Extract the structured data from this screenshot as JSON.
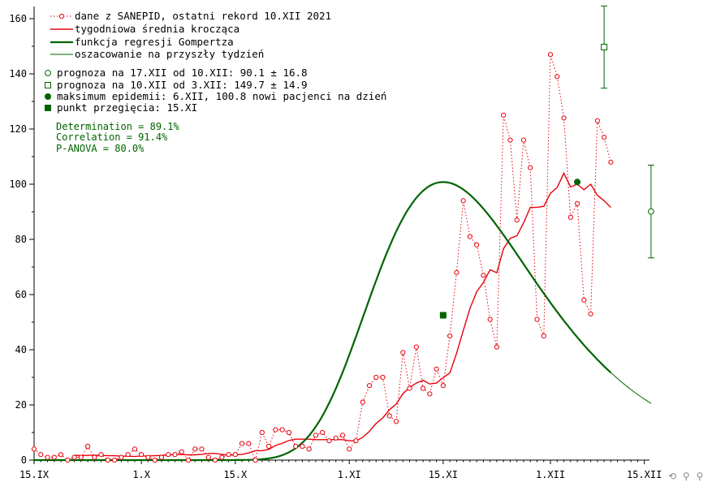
{
  "chart_data": {
    "type": "line",
    "title": "",
    "xlabel": "",
    "ylabel": "",
    "x_ticks": [
      "15.IX",
      "1.X",
      "15.X",
      "1.XI",
      "15.XI",
      "1.XII",
      "15.XII"
    ],
    "y_ticks": [
      "0",
      "20",
      "40",
      "60",
      "80",
      "100",
      "120",
      "140",
      "160"
    ],
    "ylim": [
      0,
      160
    ],
    "xlim_days_from_first_tick": [
      0,
      91
    ],
    "grid": false,
    "legend_position": "top-left",
    "legend": {
      "series1": "dane z SANEPID, ostatni rekord 10.XII 2021",
      "series2": "tygodniowa średnia krocząca",
      "series3": "funkcja regresji Gompertza",
      "series4": "oszacowanie na przyszły tydzień",
      "note1": "prognoza na 17.XII od 10.XII: 90.1 ± 16.8",
      "note2": "prognoza na 10.XII od 3.XII: 149.7 ± 14.9",
      "note3": "maksimum epidemii: 6.XII, 100.8 nowi pacjenci na dzień",
      "note4": "punkt przegięcia: 15.XI"
    },
    "stats": {
      "determination": "Determination = 89.1%",
      "correlation": "Correlation = 91.4%",
      "panova": "P-ANOVA = 80.0%"
    },
    "series": [
      {
        "name": "dane z SANEPID, ostatni rekord 10.XII 2021",
        "color": "#e8000b",
        "values": [
          4,
          2,
          1,
          1,
          2,
          0,
          1,
          1,
          5,
          1,
          2,
          0,
          0,
          1,
          2,
          4,
          2,
          1,
          0,
          1,
          2,
          2,
          3,
          0,
          4,
          4,
          1,
          0,
          1,
          2,
          2,
          6,
          6,
          0,
          10,
          5,
          11,
          11,
          10,
          5,
          5,
          4,
          9,
          10,
          7,
          8,
          9,
          4,
          7,
          21,
          27,
          30,
          30,
          16,
          14,
          39,
          26,
          41,
          26,
          24,
          33,
          27,
          45,
          68,
          94,
          81,
          78,
          67,
          51,
          41,
          125,
          116,
          87,
          116,
          106,
          51,
          45,
          147,
          139,
          124,
          88,
          93,
          58,
          53,
          123,
          117,
          108
        ]
      },
      {
        "name": "tygodniowa średnia krocząca",
        "color": "#e8000b",
        "values": [
          1.8,
          1.6,
          1.7,
          1.8,
          1.7,
          1.6,
          1.6,
          1.4,
          1.4,
          1.3,
          1.5,
          1.5,
          1.6,
          1.7,
          1.9,
          2.0,
          2.0,
          1.9,
          1.9,
          2.1,
          2.4,
          2.4,
          2.1,
          1.8,
          1.9,
          2.1,
          2.6,
          3.4,
          3.4,
          3.9,
          5.3,
          6.1,
          7.1,
          7.6,
          7.6,
          7.6,
          7.4,
          7.4,
          7.4,
          7.4,
          7.4,
          7.0,
          7.0,
          8.2,
          10.4,
          13.3,
          15.3,
          18.3,
          20.3,
          24.1,
          26.3,
          27.9,
          28.9,
          27.6,
          27.9,
          29.9,
          31.6,
          38.7,
          46.9,
          55.0,
          61.0,
          64.4,
          69.0,
          67.9,
          76.6,
          80.4,
          81.3,
          86.0,
          91.6,
          91.6,
          92.0,
          96.7,
          98.8,
          104,
          99,
          100,
          98,
          100,
          96,
          94,
          91.6
        ]
      },
      {
        "name": "funkcja regresji Gompertza",
        "color": "#006400",
        "model": "100.8 * exp(-exp(-(t - 61) / 12.35)) * 2.718"
      },
      {
        "name": "oszacowanie na przyszły tydzień",
        "color": "#006400"
      }
    ],
    "inflection_point": {
      "x": "15.XI",
      "y": 52.5
    },
    "maximum": {
      "x": "6.XII",
      "y": 100.8
    },
    "forecasts": [
      {
        "label": "17.XII",
        "value": 90.1,
        "error": 16.8,
        "marker": "circle"
      },
      {
        "label": "10.XII",
        "value": 149.7,
        "error": 14.9,
        "marker": "square"
      }
    ]
  },
  "ui": {
    "nav_icons": [
      "undo-icon",
      "zoom-out-icon",
      "zoom-in-icon"
    ],
    "nav_glyphs": [
      "⟲",
      "⚲",
      "⚲"
    ]
  }
}
